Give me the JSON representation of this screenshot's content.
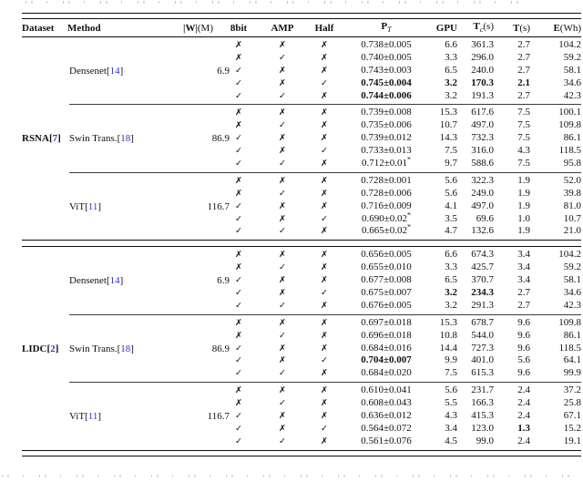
{
  "artifacts": {
    "top_cropped_caption_line": "partially visible text line cut off by top edge (illegible)",
    "bottom_cropped_caption_line": "partially visible text line cut off by bottom edge (illegible)"
  },
  "table": {
    "cite_color": "#3333cc",
    "headers": {
      "dataset": "Dataset",
      "method": "Method",
      "weight_main": "|W|",
      "weight_after": "(M)",
      "bit8": "8bit",
      "amp": "AMP",
      "half": "Half",
      "pt_main": "P",
      "pt_sub": "T",
      "gpu": "GPU",
      "tc_main": "T",
      "tc_sub": "c",
      "tc_after": "(s)",
      "ts_main": "T",
      "ts_after": "(s)",
      "e_main": "E",
      "e_after": "(Wh)"
    },
    "marks": {
      "yes": "✓",
      "no": "✗"
    },
    "sections": [
      {
        "dataset": {
          "name": "RSNA",
          "cite": "7"
        },
        "groups": [
          {
            "method": {
              "name": "Densenet",
              "cite": "14"
            },
            "weight": "6.9",
            "rows": [
              {
                "bit8": "no",
                "amp": "no",
                "half": "no",
                "pt": "0.738±0.005",
                "gpu": "6.6",
                "tc": "361.3",
                "ts": "2.7",
                "e": "104.2",
                "bold": []
              },
              {
                "bit8": "no",
                "amp": "yes",
                "half": "no",
                "pt": "0.740±0.005",
                "gpu": "3.3",
                "tc": "296.0",
                "ts": "2.7",
                "e": "59.2",
                "bold": []
              },
              {
                "bit8": "yes",
                "amp": "no",
                "half": "no",
                "pt": "0.743±0.003",
                "gpu": "6.5",
                "tc": "240.0",
                "ts": "2.7",
                "e": "58.1",
                "bold": []
              },
              {
                "bit8": "yes",
                "amp": "no",
                "half": "yes",
                "pt": "0.745±0.004",
                "gpu": "3.2",
                "tc": "170.3",
                "ts": "2.1",
                "e": "34.6",
                "bold": [
                  "pt",
                  "gpu",
                  "tc",
                  "ts"
                ]
              },
              {
                "bit8": "yes",
                "amp": "yes",
                "half": "no",
                "pt": "0.744±0.006",
                "gpu": "3.2",
                "tc": "191.3",
                "ts": "2.7",
                "e": "42.3",
                "bold": [
                  "pt"
                ]
              }
            ]
          },
          {
            "method": {
              "name": "Swin Trans.",
              "cite": "18"
            },
            "weight": "86.9",
            "rows": [
              {
                "bit8": "no",
                "amp": "no",
                "half": "no",
                "pt": "0.739±0.008",
                "gpu": "15.3",
                "tc": "617.6",
                "ts": "7.5",
                "e": "100.1",
                "bold": []
              },
              {
                "bit8": "no",
                "amp": "yes",
                "half": "no",
                "pt": "0.735±0.006",
                "gpu": "10.7",
                "tc": "497.0",
                "ts": "7.5",
                "e": "109.8",
                "bold": []
              },
              {
                "bit8": "yes",
                "amp": "no",
                "half": "no",
                "pt": "0.739±0.012",
                "gpu": "14.3",
                "tc": "732.3",
                "ts": "7.5",
                "e": "86.1",
                "bold": []
              },
              {
                "bit8": "yes",
                "amp": "no",
                "half": "yes",
                "pt": "0.733±0.013",
                "gpu": "7.5",
                "tc": "316.0",
                "ts": "4.3",
                "e": "118.5",
                "bold": []
              },
              {
                "bit8": "yes",
                "amp": "yes",
                "half": "no",
                "pt": "0.712±0.01*",
                "gpu": "9.7",
                "tc": "588.6",
                "ts": "7.5",
                "e": "95.8",
                "bold": []
              }
            ]
          },
          {
            "method": {
              "name": "ViT",
              "cite": "11"
            },
            "weight": "116.7",
            "rows": [
              {
                "bit8": "no",
                "amp": "no",
                "half": "no",
                "pt": "0.728±0.001",
                "gpu": "5.6",
                "tc": "322.3",
                "ts": "1.9",
                "e": "52.0",
                "bold": []
              },
              {
                "bit8": "no",
                "amp": "yes",
                "half": "no",
                "pt": "0.728±0.006",
                "gpu": "5.6",
                "tc": "249.0",
                "ts": "1.9",
                "e": "39.8",
                "bold": []
              },
              {
                "bit8": "yes",
                "amp": "no",
                "half": "no",
                "pt": "0.716±0.009",
                "gpu": "4.1",
                "tc": "497.0",
                "ts": "1.9",
                "e": "81.0",
                "bold": []
              },
              {
                "bit8": "yes",
                "amp": "no",
                "half": "yes",
                "pt": "0.690±0.02*",
                "gpu": "3.5",
                "tc": "69.6",
                "ts": "1.0",
                "e": "10.7",
                "bold": []
              },
              {
                "bit8": "yes",
                "amp": "yes",
                "half": "no",
                "pt": "0.665±0.02*",
                "gpu": "4.7",
                "tc": "132.6",
                "ts": "1.9",
                "e": "21.0",
                "bold": []
              }
            ]
          }
        ]
      },
      {
        "dataset": {
          "name": "LIDC",
          "cite": "2"
        },
        "groups": [
          {
            "method": {
              "name": "Densenet",
              "cite": "14"
            },
            "weight": "6.9",
            "rows": [
              {
                "bit8": "no",
                "amp": "no",
                "half": "no",
                "pt": "0.656±0.005",
                "gpu": "6.6",
                "tc": "674.3",
                "ts": "3.4",
                "e": "104.2",
                "bold": []
              },
              {
                "bit8": "no",
                "amp": "yes",
                "half": "no",
                "pt": "0.655±0.010",
                "gpu": "3.3",
                "tc": "425.7",
                "ts": "3.4",
                "e": "59.2",
                "bold": []
              },
              {
                "bit8": "yes",
                "amp": "no",
                "half": "no",
                "pt": "0.677±0.008",
                "gpu": "6.5",
                "tc": "370.7",
                "ts": "3.4",
                "e": "58.1",
                "bold": []
              },
              {
                "bit8": "yes",
                "amp": "no",
                "half": "yes",
                "pt": "0.675±0.007",
                "gpu": "3.2",
                "tc": "234.3",
                "ts": "2.7",
                "e": "34.6",
                "bold": [
                  "gpu",
                  "tc"
                ]
              },
              {
                "bit8": "yes",
                "amp": "yes",
                "half": "no",
                "pt": "0.676±0.005",
                "gpu": "3.2",
                "tc": "291.3",
                "ts": "2.7",
                "e": "42.3",
                "bold": []
              }
            ]
          },
          {
            "method": {
              "name": "Swin Trans.",
              "cite": "18"
            },
            "weight": "86.9",
            "rows": [
              {
                "bit8": "no",
                "amp": "no",
                "half": "no",
                "pt": "0.697±0.018",
                "gpu": "15.3",
                "tc": "678.7",
                "ts": "9.6",
                "e": "109.8",
                "bold": []
              },
              {
                "bit8": "no",
                "amp": "yes",
                "half": "no",
                "pt": "0.696±0.018",
                "gpu": "10.8",
                "tc": "544.0",
                "ts": "9.6",
                "e": "86.1",
                "bold": []
              },
              {
                "bit8": "yes",
                "amp": "no",
                "half": "no",
                "pt": "0.684±0.016",
                "gpu": "14.4",
                "tc": "727.3",
                "ts": "9.6",
                "e": "118.5",
                "bold": []
              },
              {
                "bit8": "yes",
                "amp": "no",
                "half": "yes",
                "pt": "0.704±0.007",
                "gpu": "9.9",
                "tc": "401.0",
                "ts": "5.6",
                "e": "64.1",
                "bold": [
                  "pt"
                ]
              },
              {
                "bit8": "yes",
                "amp": "yes",
                "half": "no",
                "pt": "0.684±0.020",
                "gpu": "7.5",
                "tc": "615.3",
                "ts": "9.6",
                "e": "99.9",
                "bold": []
              }
            ]
          },
          {
            "method": {
              "name": "ViT",
              "cite": "11"
            },
            "weight": "116.7",
            "rows": [
              {
                "bit8": "no",
                "amp": "no",
                "half": "no",
                "pt": "0.610±0.041",
                "gpu": "5.6",
                "tc": "231.7",
                "ts": "2.4",
                "e": "37.2",
                "bold": []
              },
              {
                "bit8": "no",
                "amp": "yes",
                "half": "no",
                "pt": "0.608±0.043",
                "gpu": "5.5",
                "tc": "166.3",
                "ts": "2.4",
                "e": "25.8",
                "bold": []
              },
              {
                "bit8": "yes",
                "amp": "no",
                "half": "no",
                "pt": "0.636±0.012",
                "gpu": "4.3",
                "tc": "415.3",
                "ts": "2.4",
                "e": "67.1",
                "bold": []
              },
              {
                "bit8": "yes",
                "amp": "no",
                "half": "yes",
                "pt": "0.564±0.072",
                "gpu": "3.4",
                "tc": "123.0",
                "ts": "1.3",
                "e": "15.2",
                "bold": [
                  "ts"
                ]
              },
              {
                "bit8": "yes",
                "amp": "yes",
                "half": "no",
                "pt": "0.561±0.076",
                "gpu": "4.5",
                "tc": "99.0",
                "ts": "2.4",
                "e": "19.1",
                "bold": []
              }
            ]
          }
        ]
      }
    ]
  }
}
